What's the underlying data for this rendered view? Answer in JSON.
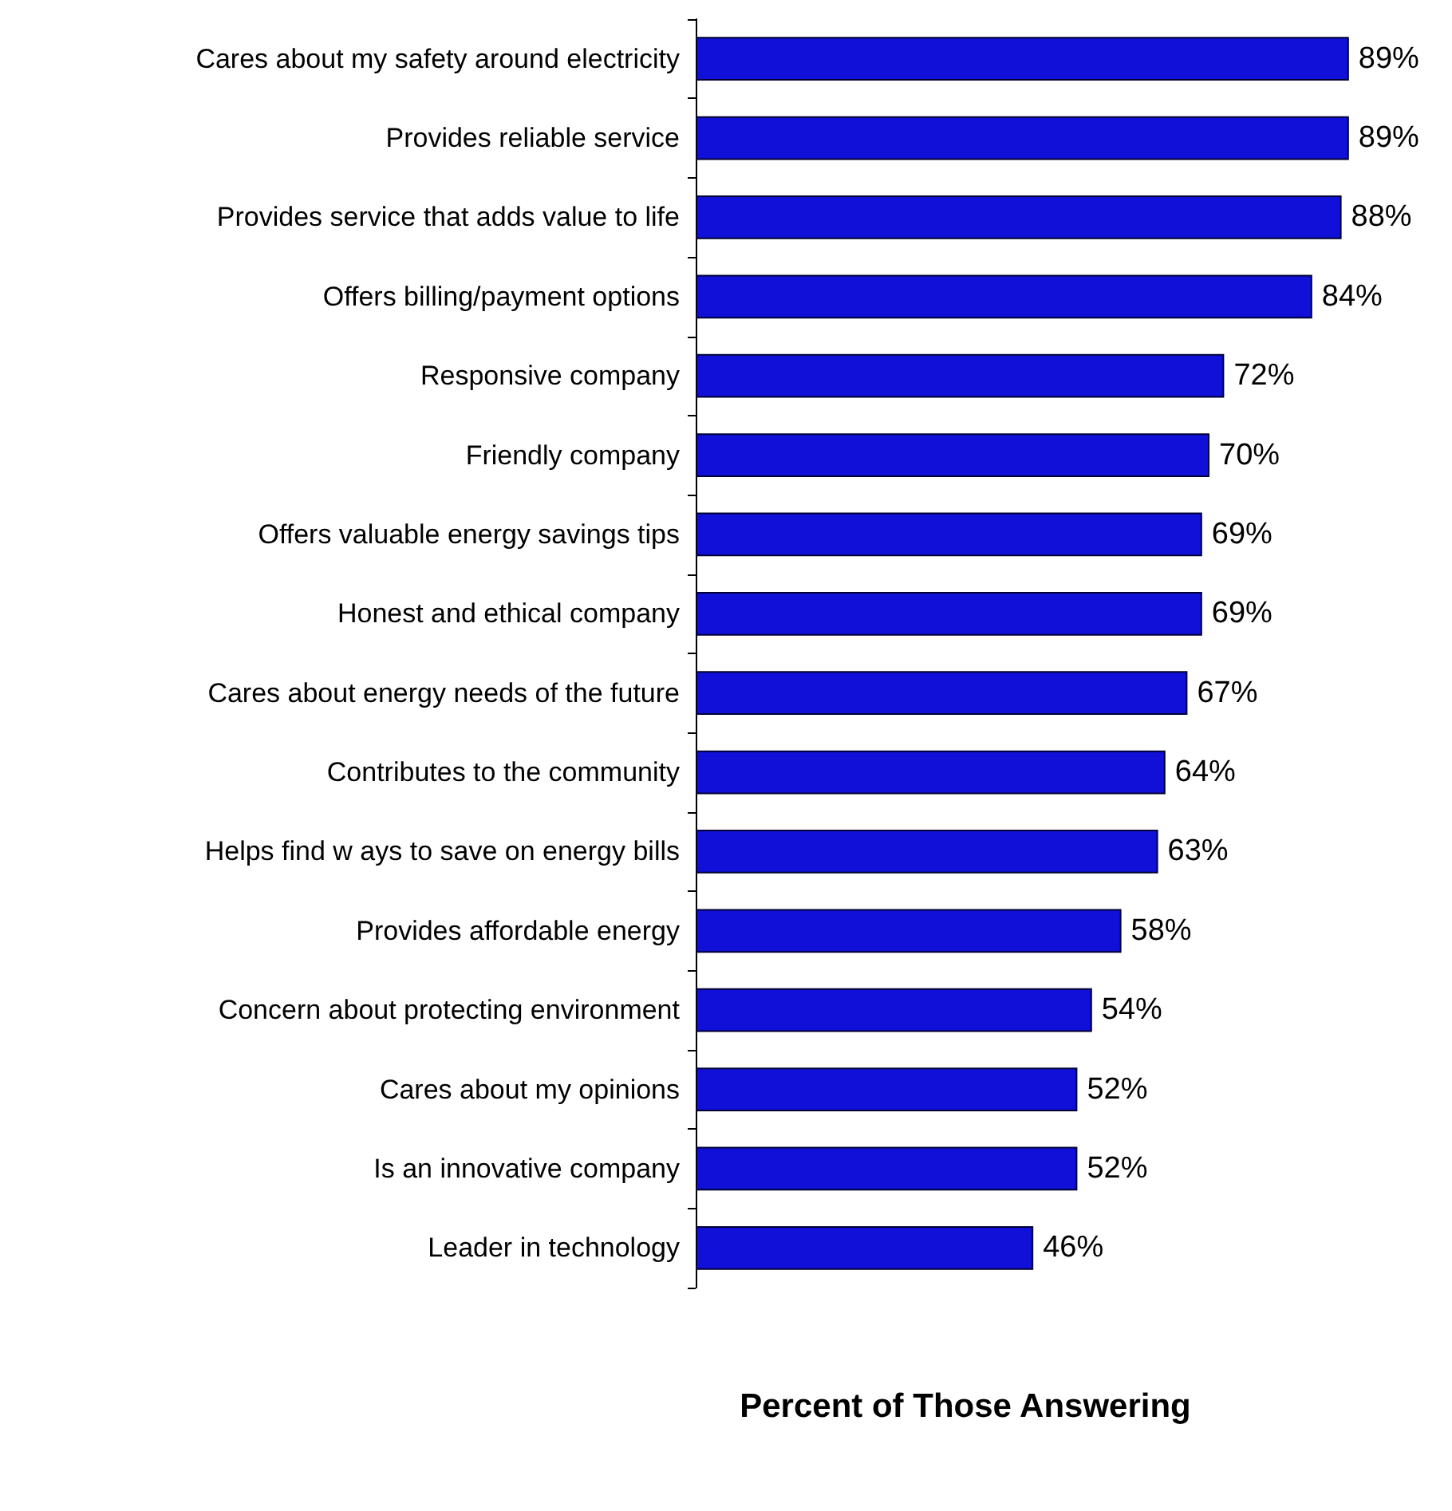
{
  "chart_data": {
    "type": "bar",
    "orientation": "horizontal",
    "xlabel": "Percent of Those Answering",
    "categories": [
      "Cares about my safety around electricity",
      "Provides reliable service",
      "Provides service that adds value to life",
      "Offers billing/payment options",
      "Responsive company",
      "Friendly company",
      "Offers valuable energy savings tips",
      "Honest and ethical company",
      "Cares about energy needs of the future",
      "Contributes to the community",
      "Helps find w ays to save on energy bills",
      "Provides affordable energy",
      "Concern about protecting environment",
      "Cares about my opinions",
      "Is an innovative company",
      "Leader in technology"
    ],
    "values": [
      89,
      89,
      88,
      84,
      72,
      70,
      69,
      69,
      67,
      64,
      63,
      58,
      54,
      52,
      52,
      46
    ],
    "color": "#1010d8",
    "value_labels": [
      "89%",
      "89%",
      "88%",
      "84%",
      "72%",
      "70%",
      "69%",
      "69%",
      "67%",
      "64%",
      "63%",
      "58%",
      "54%",
      "52%",
      "52%",
      "46%"
    ]
  }
}
